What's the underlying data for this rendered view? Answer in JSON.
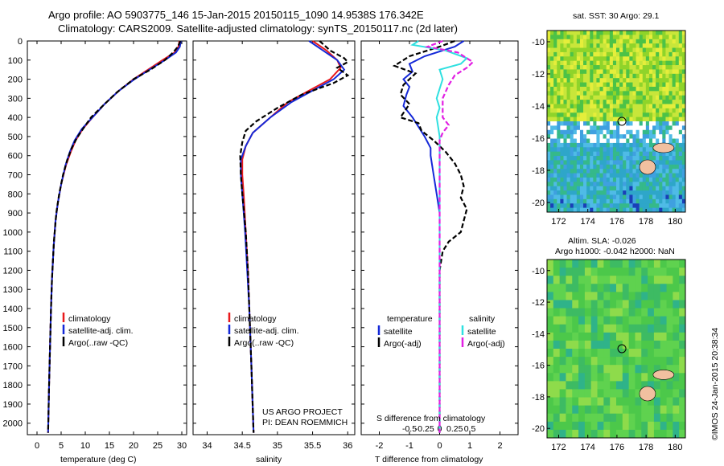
{
  "header": {
    "line1": "Argo profile: AO 5903775_146 15-Jan-2015 20150115_1090 14.9538S 176.342E",
    "line2": "Climatology: CARS2009. Satellite-adjusted climatology: synTS_20150117.nc (2d later)"
  },
  "colors": {
    "climatology": "#e8191c",
    "satellite": "#1428d8",
    "argo": "#000000",
    "sal_satellite": "#2fe0e0",
    "sal_argo": "#e21fe3"
  },
  "depth_axis": {
    "ticks": [
      0,
      100,
      200,
      300,
      400,
      500,
      600,
      700,
      800,
      900,
      1000,
      1100,
      1200,
      1300,
      1400,
      1500,
      1600,
      1700,
      1800,
      1900,
      2000
    ],
    "range": [
      0,
      2060
    ]
  },
  "chart_data": [
    {
      "type": "line",
      "panel": "temperature",
      "xlabel": "temperature (deg C)",
      "xlim": [
        -2,
        31
      ],
      "xticks": [
        0,
        5,
        10,
        15,
        20,
        25,
        30
      ],
      "ylabel": "depth",
      "y_reversed": true,
      "legend": [
        "climatology",
        "satellite-adj. clim.",
        "Argo(..raw -QC)"
      ],
      "series": [
        {
          "name": "climatology",
          "style": "solid",
          "color_key": "climatology",
          "points": [
            [
              29.5,
              0
            ],
            [
              29.3,
              30
            ],
            [
              28.5,
              60
            ],
            [
              26,
              100
            ],
            [
              23,
              150
            ],
            [
              20,
              200
            ],
            [
              17,
              260
            ],
            [
              14,
              330
            ],
            [
              11.5,
              400
            ],
            [
              9.5,
              460
            ],
            [
              8,
              520
            ],
            [
              7,
              580
            ],
            [
              6,
              650
            ],
            [
              5,
              750
            ],
            [
              4.3,
              850
            ],
            [
              3.8,
              950
            ],
            [
              3.4,
              1100
            ],
            [
              3.1,
              1250
            ],
            [
              2.9,
              1400
            ],
            [
              2.7,
              1600
            ],
            [
              2.5,
              1800
            ],
            [
              2.3,
              2050
            ]
          ]
        },
        {
          "name": "satellite-adj. clim.",
          "style": "solid",
          "color_key": "satellite",
          "points": [
            [
              29.8,
              0
            ],
            [
              29.6,
              30
            ],
            [
              28.8,
              60
            ],
            [
              26.5,
              100
            ],
            [
              23.3,
              150
            ],
            [
              20.2,
              200
            ],
            [
              17,
              260
            ],
            [
              14,
              330
            ],
            [
              11.5,
              400
            ],
            [
              9.3,
              460
            ],
            [
              7.8,
              520
            ],
            [
              6.8,
              580
            ],
            [
              5.9,
              650
            ],
            [
              5,
              750
            ],
            [
              4.3,
              850
            ],
            [
              3.8,
              950
            ],
            [
              3.4,
              1100
            ],
            [
              3.1,
              1250
            ],
            [
              2.9,
              1400
            ],
            [
              2.7,
              1600
            ],
            [
              2.5,
              1800
            ],
            [
              2.3,
              2050
            ]
          ]
        },
        {
          "name": "Argo(..raw -QC)",
          "style": "dashed",
          "color_key": "argo",
          "points": [
            [
              29.7,
              0
            ],
            [
              29.2,
              30
            ],
            [
              28.2,
              60
            ],
            [
              26.5,
              100
            ],
            [
              23.5,
              150
            ],
            [
              20,
              200
            ],
            [
              16.5,
              270
            ],
            [
              14,
              330
            ],
            [
              11.2,
              400
            ],
            [
              9.8,
              450
            ],
            [
              8.2,
              510
            ],
            [
              7.2,
              560
            ],
            [
              6.3,
              620
            ],
            [
              5.4,
              700
            ],
            [
              4.6,
              800
            ],
            [
              4,
              900
            ],
            [
              3.5,
              1050
            ],
            [
              3.1,
              1250
            ],
            [
              2.9,
              1400
            ],
            [
              2.7,
              1600
            ],
            [
              2.5,
              1800
            ],
            [
              2.3,
              2050
            ]
          ]
        }
      ]
    },
    {
      "type": "line",
      "panel": "salinity",
      "xlabel": "salinity",
      "xlim": [
        33.8,
        36.1
      ],
      "xticks": [
        34,
        34.5,
        35,
        35.5,
        36
      ],
      "xticklabels": [
        "34",
        "34.5",
        "35",
        "35.5",
        "36"
      ],
      "ylabel": "depth",
      "y_reversed": true,
      "legend": [
        "climatology",
        "satellite-adj. clim.",
        "Argo(..raw -QC)"
      ],
      "series": [
        {
          "name": "climatology",
          "style": "solid",
          "color_key": "climatology",
          "points": [
            [
              35.5,
              0
            ],
            [
              35.7,
              50
            ],
            [
              35.85,
              100
            ],
            [
              35.9,
              140
            ],
            [
              35.75,
              200
            ],
            [
              35.45,
              260
            ],
            [
              35.15,
              320
            ],
            [
              34.9,
              400
            ],
            [
              34.65,
              480
            ],
            [
              34.55,
              550
            ],
            [
              34.5,
              620
            ],
            [
              34.5,
              700
            ],
            [
              34.52,
              800
            ],
            [
              34.55,
              1000
            ],
            [
              34.58,
              1200
            ],
            [
              34.6,
              1400
            ],
            [
              34.63,
              1700
            ],
            [
              34.66,
              2050
            ]
          ]
        },
        {
          "name": "satellite-adj. clim.",
          "style": "solid",
          "color_key": "satellite",
          "points": [
            [
              35.45,
              0
            ],
            [
              35.65,
              50
            ],
            [
              35.85,
              100
            ],
            [
              35.95,
              150
            ],
            [
              35.8,
              200
            ],
            [
              35.5,
              260
            ],
            [
              35.2,
              320
            ],
            [
              34.9,
              400
            ],
            [
              34.65,
              480
            ],
            [
              34.55,
              550
            ],
            [
              34.48,
              620
            ],
            [
              34.48,
              700
            ],
            [
              34.5,
              800
            ],
            [
              34.54,
              1000
            ],
            [
              34.57,
              1200
            ],
            [
              34.6,
              1400
            ],
            [
              34.63,
              1700
            ],
            [
              34.66,
              2050
            ]
          ]
        },
        {
          "name": "Argo(..raw -QC)",
          "style": "dashed",
          "color_key": "argo",
          "points": [
            [
              35.6,
              0
            ],
            [
              35.75,
              50
            ],
            [
              35.95,
              90
            ],
            [
              36.0,
              110
            ],
            [
              35.85,
              140
            ],
            [
              36.0,
              180
            ],
            [
              35.8,
              220
            ],
            [
              35.35,
              280
            ],
            [
              35.0,
              350
            ],
            [
              34.7,
              420
            ],
            [
              34.55,
              470
            ],
            [
              34.5,
              530
            ],
            [
              34.47,
              600
            ],
            [
              34.48,
              700
            ],
            [
              34.5,
              800
            ],
            [
              34.55,
              1000
            ],
            [
              34.58,
              1200
            ],
            [
              34.6,
              1400
            ],
            [
              34.63,
              1700
            ],
            [
              34.66,
              2050
            ]
          ]
        }
      ]
    },
    {
      "type": "line",
      "panel": "difference",
      "xlabel_top": "S difference from climatology",
      "xlabel_bottom": "T difference from climatology",
      "xlim": [
        -2.6,
        2.6
      ],
      "xticks": [
        -2,
        -1,
        0,
        1,
        2
      ],
      "xticks_S": [
        -0.5,
        -0.25,
        0,
        0.25,
        0.5
      ],
      "xticklabels_S": [
        "-0.5",
        "-0.25",
        "0",
        "0.25",
        "0.5"
      ],
      "ylabel": "depth",
      "y_reversed": true,
      "legend_temperature_title": "temperature",
      "legend_salinity_title": "salinity",
      "legend": [
        "satellite",
        "Argo(-adj)",
        "satellite",
        "Argo(-adj)"
      ],
      "series": [
        {
          "name": "T satellite",
          "style": "solid",
          "color_key": "satellite",
          "points": [
            [
              0.8,
              0
            ],
            [
              0.5,
              30
            ],
            [
              -0.5,
              80
            ],
            [
              -1,
              120
            ],
            [
              -0.9,
              160
            ],
            [
              -1.2,
              200
            ],
            [
              -1,
              240
            ],
            [
              -1.1,
              280
            ],
            [
              -1.2,
              340
            ],
            [
              -0.9,
              400
            ],
            [
              -0.7,
              450
            ],
            [
              -0.5,
              500
            ],
            [
              -0.3,
              560
            ],
            [
              -0.3,
              600
            ],
            [
              -0.2,
              700
            ],
            [
              -0.1,
              800
            ],
            [
              0,
              900
            ],
            [
              0,
              1000
            ],
            [
              0,
              2050
            ]
          ]
        },
        {
          "name": "T Argo(-adj)",
          "style": "dashed",
          "color_key": "argo",
          "points": [
            [
              0.5,
              0
            ],
            [
              0,
              30
            ],
            [
              -1,
              80
            ],
            [
              -1.5,
              130
            ],
            [
              -0.8,
              170
            ],
            [
              -1.2,
              230
            ],
            [
              -1.3,
              280
            ],
            [
              -1,
              330
            ],
            [
              -1.3,
              400
            ],
            [
              -0.7,
              430
            ],
            [
              -0.6,
              470
            ],
            [
              -0.2,
              520
            ],
            [
              0.2,
              580
            ],
            [
              0.5,
              640
            ],
            [
              0.7,
              700
            ],
            [
              0.8,
              760
            ],
            [
              0.7,
              820
            ],
            [
              0.9,
              880
            ],
            [
              0.8,
              940
            ],
            [
              0.7,
              1000
            ],
            [
              0.3,
              1050
            ],
            [
              0.1,
              1100
            ],
            [
              0,
              1200
            ],
            [
              0,
              2050
            ]
          ]
        },
        {
          "name": "S satellite",
          "style": "solid",
          "color_key": "sal_satellite",
          "points": [
            [
              -0.7,
              0
            ],
            [
              -0.9,
              20
            ],
            [
              0.2,
              50
            ],
            [
              0.9,
              90
            ],
            [
              0.7,
              120
            ],
            [
              0,
              150
            ],
            [
              0.1,
              200
            ],
            [
              0,
              250
            ],
            [
              -0.1,
              300
            ],
            [
              0,
              350
            ],
            [
              -0.1,
              400
            ],
            [
              0,
              500
            ],
            [
              0,
              700
            ],
            [
              0,
              2050
            ]
          ]
        },
        {
          "name": "S Argo(-adj)",
          "style": "dashed",
          "color_key": "sal_argo",
          "points": [
            [
              0.1,
              0
            ],
            [
              -0.4,
              30
            ],
            [
              0.6,
              60
            ],
            [
              1.1,
              110
            ],
            [
              0.9,
              140
            ],
            [
              0.5,
              180
            ],
            [
              0.3,
              230
            ],
            [
              0.1,
              300
            ],
            [
              0.1,
              400
            ],
            [
              0.3,
              440
            ],
            [
              0.1,
              480
            ],
            [
              0,
              520
            ],
            [
              0,
              2050
            ]
          ]
        }
      ]
    }
  ],
  "annotations": {
    "project_line1": "US ARGO PROJECT",
    "project_line2": "PI: DEAN ROEMMICH"
  },
  "map_top": {
    "title": "sat. SST: 30 Argo: 29.1",
    "xticks": [
      172,
      174,
      176,
      178,
      180
    ],
    "yticks": [
      -10,
      -12,
      -14,
      -16,
      -18,
      -20
    ]
  },
  "map_bottom": {
    "title_line1": "Altim. SLA: -0.026",
    "title_line2": "Argo h1000: -0.042 h2000: NaN",
    "xticks": [
      172,
      174,
      176,
      178,
      180
    ],
    "yticks": [
      -10,
      -12,
      -14,
      -16,
      -18,
      -20
    ]
  },
  "credit": "©IMOS 24-Jan-2015 20:38:34"
}
